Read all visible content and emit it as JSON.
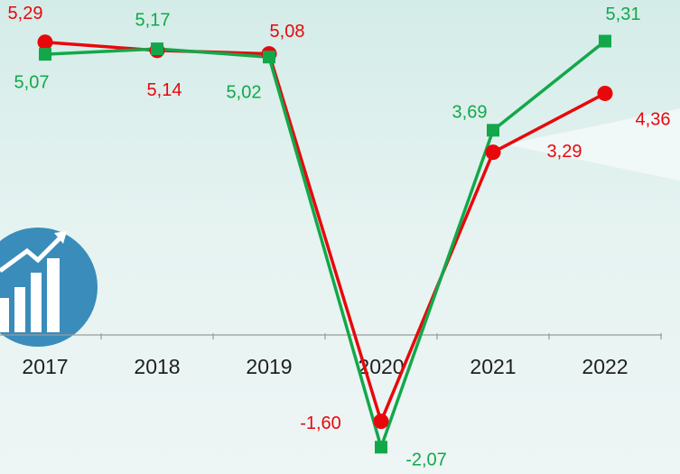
{
  "chart_data": {
    "type": "line",
    "categories": [
      "2017",
      "2018",
      "2019",
      "2020",
      "2021",
      "2022"
    ],
    "series": [
      {
        "color": "#e8080c",
        "marker": "circle",
        "values": [
          5.29,
          5.14,
          5.08,
          -1.6,
          3.29,
          4.36
        ],
        "value_labels": [
          "5,29",
          "5,14",
          "5,08",
          "-1,60",
          "3,29",
          "4,36"
        ]
      },
      {
        "color": "#12a84a",
        "marker": "square",
        "values": [
          5.07,
          5.17,
          5.02,
          -2.07,
          3.69,
          5.31
        ],
        "value_labels": [
          "5,07",
          "5,17",
          "5,02",
          "-2,07",
          "3,69",
          "5,31"
        ]
      }
    ],
    "ylim": [
      -2.5,
      6
    ]
  }
}
